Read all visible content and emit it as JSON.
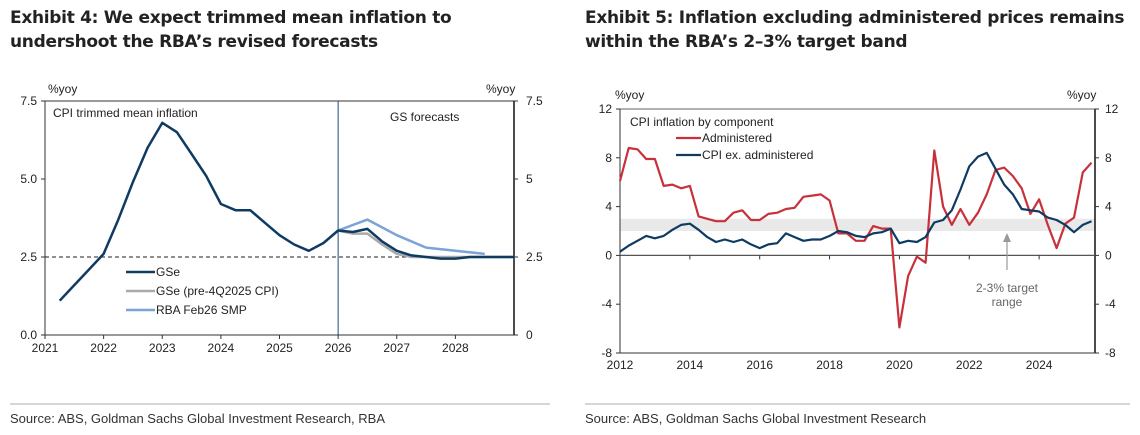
{
  "exhibits": [
    {
      "title": "Exhibit 4: We expect trimmed mean inflation to undershoot the RBA’s revised forecasts",
      "source": "Source: ABS, Goldman Sachs Global Investment Research, RBA"
    },
    {
      "title": "Exhibit 5: Inflation excluding administered prices remains within the RBA’s 2–3% target band",
      "source": "Source: ABS, Goldman Sachs Global Investment Research"
    }
  ],
  "chart_data": [
    {
      "type": "line",
      "title": "Exhibit 4: We expect trimmed mean inflation to undershoot the RBA’s revised forecasts",
      "inner_title": "CPI trimmed mean inflation",
      "ylabel_left": "%yoy",
      "ylabel_right": "%yoy",
      "ylim": [
        0,
        7.5
      ],
      "xlim": [
        2021,
        2029
      ],
      "x_ticks": [
        "2021",
        "2022",
        "2023",
        "2024",
        "2025",
        "2026",
        "2027",
        "2028"
      ],
      "y_ticks_left": [
        "0.0",
        "2.5",
        "5.0",
        "7.5"
      ],
      "y_ticks_right": [
        "0",
        "2.5",
        "5",
        "7.5"
      ],
      "reference_line": {
        "y": 2.5,
        "style": "dashed"
      },
      "forecast_divider": {
        "x": 2026.0,
        "label": "GS forecasts"
      },
      "grid": false,
      "legend_position": "bottom-left",
      "series": [
        {
          "name": "GSe",
          "color": "#0f3b63",
          "x": [
            2021.25,
            2021.5,
            2021.75,
            2022.0,
            2022.25,
            2022.5,
            2022.75,
            2023.0,
            2023.25,
            2023.5,
            2023.75,
            2024.0,
            2024.25,
            2024.5,
            2024.75,
            2025.0,
            2025.25,
            2025.5,
            2025.75,
            2026.0,
            2026.25,
            2026.5,
            2026.75,
            2027.0,
            2027.25,
            2027.5,
            2027.75,
            2028.0,
            2028.25,
            2028.5,
            2028.75,
            2029.0
          ],
          "values": [
            1.1,
            1.6,
            2.1,
            2.6,
            3.7,
            4.9,
            6.0,
            6.8,
            6.5,
            5.8,
            5.1,
            4.2,
            4.0,
            4.0,
            3.6,
            3.2,
            2.9,
            2.7,
            2.95,
            3.35,
            3.3,
            3.4,
            3.0,
            2.7,
            2.55,
            2.5,
            2.45,
            2.45,
            2.5,
            2.5,
            2.5,
            2.5
          ]
        },
        {
          "name": "GSe (pre-4Q2025 CPI)",
          "color": "#aaaaaa",
          "x": [
            2026.0,
            2026.25,
            2026.5,
            2026.75,
            2027.0,
            2027.25,
            2027.5,
            2027.75,
            2028.0,
            2028.25,
            2028.5,
            2028.75,
            2029.0
          ],
          "values": [
            3.35,
            3.25,
            3.25,
            2.9,
            2.6,
            2.5,
            2.5,
            2.5,
            2.5,
            2.5,
            2.5,
            2.5,
            2.5
          ]
        },
        {
          "name": "RBA Feb26 SMP",
          "color": "#7ba3d6",
          "x": [
            2026.0,
            2026.5,
            2027.0,
            2027.5,
            2028.0,
            2028.5
          ],
          "values": [
            3.35,
            3.7,
            3.2,
            2.8,
            2.7,
            2.6
          ]
        }
      ]
    },
    {
      "type": "line",
      "title": "Exhibit 5: Inflation excluding administered prices remains within the RBA’s 2–3% target band",
      "inner_title": "CPI inflation by component",
      "ylabel_left": "%yoy",
      "ylabel_right": "%yoy",
      "ylim": [
        -8,
        12
      ],
      "xlim": [
        2012,
        2025.6
      ],
      "x_ticks": [
        "2012",
        "2014",
        "2016",
        "2018",
        "2020",
        "2022",
        "2024"
      ],
      "y_ticks": [
        "-8",
        "-4",
        "0",
        "4",
        "8",
        "12"
      ],
      "target_band": {
        "low": 2,
        "high": 3,
        "label": "2-3% target range"
      },
      "grid": false,
      "legend_position": "top-left",
      "series": [
        {
          "name": "Administered",
          "color": "#c8313a",
          "x": [
            2012.0,
            2012.25,
            2012.5,
            2012.75,
            2013.0,
            2013.25,
            2013.5,
            2013.75,
            2014.0,
            2014.25,
            2014.5,
            2014.75,
            2015.0,
            2015.25,
            2015.5,
            2015.75,
            2016.0,
            2016.25,
            2016.5,
            2016.75,
            2017.0,
            2017.25,
            2017.5,
            2017.75,
            2018.0,
            2018.25,
            2018.5,
            2018.75,
            2019.0,
            2019.25,
            2019.5,
            2019.75,
            2020.0,
            2020.25,
            2020.5,
            2020.75,
            2021.0,
            2021.25,
            2021.5,
            2021.75,
            2022.0,
            2022.25,
            2022.5,
            2022.75,
            2023.0,
            2023.25,
            2023.5,
            2023.75,
            2024.0,
            2024.25,
            2024.5,
            2024.75,
            2025.0,
            2025.25,
            2025.5
          ],
          "values": [
            6.1,
            8.8,
            8.7,
            7.9,
            7.9,
            5.7,
            5.8,
            5.5,
            5.7,
            3.2,
            3.0,
            2.8,
            2.8,
            3.5,
            3.7,
            2.9,
            2.9,
            3.4,
            3.5,
            3.8,
            3.9,
            4.8,
            4.9,
            5.0,
            4.5,
            1.8,
            1.8,
            1.2,
            1.2,
            2.4,
            2.2,
            2.2,
            -5.9,
            -1.7,
            -0.1,
            -0.6,
            8.6,
            4.0,
            2.5,
            3.8,
            2.5,
            3.5,
            5.0,
            7.0,
            7.2,
            6.5,
            5.5,
            3.4,
            4.6,
            2.5,
            0.6,
            2.6,
            3.1,
            6.8,
            7.6
          ]
        },
        {
          "name": "CPI ex. administered",
          "color": "#0f3b63",
          "x": [
            2012.0,
            2012.25,
            2012.5,
            2012.75,
            2013.0,
            2013.25,
            2013.5,
            2013.75,
            2014.0,
            2014.25,
            2014.5,
            2014.75,
            2015.0,
            2015.25,
            2015.5,
            2015.75,
            2016.0,
            2016.25,
            2016.5,
            2016.75,
            2017.0,
            2017.25,
            2017.5,
            2017.75,
            2018.0,
            2018.25,
            2018.5,
            2018.75,
            2019.0,
            2019.25,
            2019.5,
            2019.75,
            2020.0,
            2020.25,
            2020.5,
            2020.75,
            2021.0,
            2021.25,
            2021.5,
            2021.75,
            2022.0,
            2022.25,
            2022.5,
            2022.75,
            2023.0,
            2023.25,
            2023.5,
            2023.75,
            2024.0,
            2024.25,
            2024.5,
            2024.75,
            2025.0,
            2025.25,
            2025.5
          ],
          "values": [
            0.3,
            0.8,
            1.2,
            1.6,
            1.4,
            1.6,
            2.1,
            2.5,
            2.6,
            2.1,
            1.5,
            1.1,
            1.3,
            1.1,
            1.3,
            0.9,
            0.6,
            0.9,
            1.0,
            1.8,
            1.5,
            1.2,
            1.3,
            1.3,
            1.6,
            2.0,
            1.9,
            1.6,
            1.5,
            1.8,
            1.9,
            2.2,
            1.0,
            1.2,
            1.1,
            1.5,
            2.7,
            2.9,
            3.7,
            5.4,
            7.3,
            8.1,
            8.4,
            7.1,
            5.8,
            5.0,
            3.8,
            3.7,
            3.6,
            3.1,
            2.9,
            2.5,
            1.9,
            2.5,
            2.8
          ]
        }
      ]
    }
  ]
}
